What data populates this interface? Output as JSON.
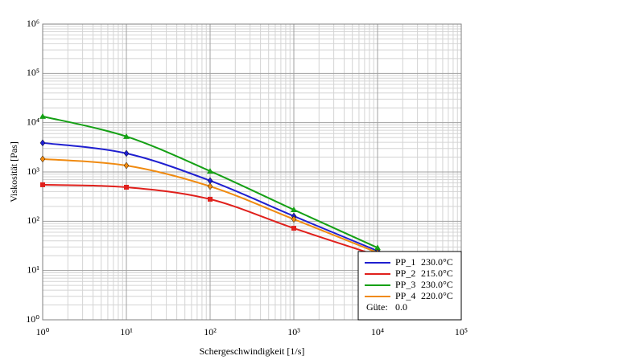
{
  "chart_data": {
    "type": "line",
    "x_label": "Schergeschwindigkeit [1/s]",
    "y_label": "Viskosität [Pas]",
    "log_x": true,
    "log_y": true,
    "grid": true,
    "minor_grid": true,
    "xlim": [
      1,
      100000
    ],
    "xticks": [
      {
        "value": 1,
        "label": "10⁰"
      },
      {
        "value": 10,
        "label": "10¹"
      },
      {
        "value": 100,
        "label": "10²"
      },
      {
        "value": 1000,
        "label": "10³"
      },
      {
        "value": 10000,
        "label": "10⁴"
      },
      {
        "value": 100000,
        "label": "10⁵"
      }
    ],
    "ylim": [
      1,
      1000000
    ],
    "yticks": [
      {
        "value": 1,
        "label": "10⁰"
      },
      {
        "value": 10,
        "label": "10¹"
      },
      {
        "value": 100,
        "label": "10²"
      },
      {
        "value": 1000,
        "label": "10³"
      },
      {
        "value": 10000,
        "label": "10⁴"
      },
      {
        "value": 100000,
        "label": "10⁵"
      },
      {
        "value": 1000000,
        "label": "10⁶"
      }
    ],
    "x": [
      1,
      10,
      100,
      1000,
      10000
    ],
    "series": [
      {
        "name": "PP_1",
        "temperature": "230.0°C",
        "color": "#1f1fd0",
        "marker": "diamond",
        "values": [
          3890,
          2380,
          665,
          127,
          25
        ]
      },
      {
        "name": "PP_2",
        "temperature": "215.0°C",
        "color": "#e0201c",
        "marker": "square",
        "values": [
          550,
          490,
          280,
          72,
          20
        ]
      },
      {
        "name": "PP_3",
        "temperature": "230.0°C",
        "color": "#15a015",
        "marker": "triangle",
        "values": [
          13400,
          5250,
          1040,
          171,
          29
        ]
      },
      {
        "name": "PP_4",
        "temperature": "220.0°C",
        "color": "#f08a10",
        "marker": "diamond",
        "values": [
          1830,
          1350,
          510,
          110,
          23
        ]
      }
    ],
    "legend": "lower right",
    "quality_label": "Güte:",
    "quality_value": "0.0"
  }
}
